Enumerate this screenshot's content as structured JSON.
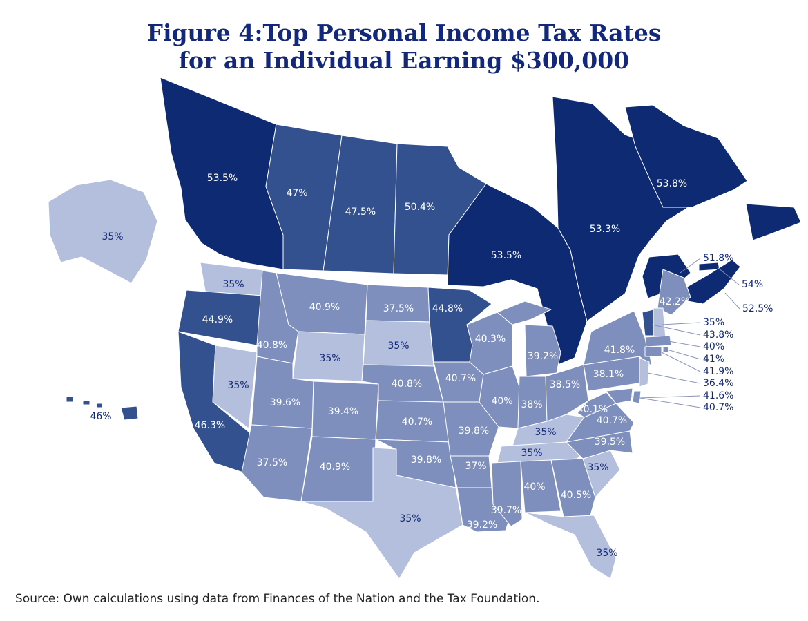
{
  "title": {
    "line1": "Figure 4:Top Personal Income Tax Rates",
    "line2": "for an Individual Earning $300,000"
  },
  "source": "Source: Own calculations using data from Finances of the Nation and the Tax Foundation.",
  "colors": {
    "tier_top": "#0e2a72",
    "tier_high": "#33518f",
    "tier_mid": "#7e8fbd",
    "tier_low": "#b3bfdc",
    "border": "#ffffff",
    "label_dark": "#13287a"
  },
  "regions": [
    {
      "name": "British Columbia",
      "rate": "53.5%",
      "tier": "top"
    },
    {
      "name": "Alberta",
      "rate": "47%",
      "tier": "high"
    },
    {
      "name": "Saskatchewan",
      "rate": "47.5%",
      "tier": "high"
    },
    {
      "name": "Manitoba",
      "rate": "50.4%",
      "tier": "high"
    },
    {
      "name": "Ontario",
      "rate": "53.5%",
      "tier": "top"
    },
    {
      "name": "Quebec",
      "rate": "53.3%",
      "tier": "top"
    },
    {
      "name": "Newfoundland and Labrador",
      "rate": "53.8%",
      "tier": "top"
    },
    {
      "name": "New Brunswick",
      "rate": "51.8%",
      "tier": "top"
    },
    {
      "name": "Prince Edward Island",
      "rate": "54%",
      "tier": "top"
    },
    {
      "name": "Nova Scotia",
      "rate": "52.5%",
      "tier": "top"
    },
    {
      "name": "Alaska",
      "rate": "35%",
      "tier": "low"
    },
    {
      "name": "Hawaii",
      "rate": "46%",
      "tier": "high"
    },
    {
      "name": "Washington",
      "rate": "35%",
      "tier": "low"
    },
    {
      "name": "Oregon",
      "rate": "44.9%",
      "tier": "high"
    },
    {
      "name": "California",
      "rate": "46.3%",
      "tier": "high"
    },
    {
      "name": "Nevada",
      "rate": "35%",
      "tier": "low"
    },
    {
      "name": "Idaho",
      "rate": "40.8%",
      "tier": "mid"
    },
    {
      "name": "Montana",
      "rate": "40.9%",
      "tier": "mid"
    },
    {
      "name": "Wyoming",
      "rate": "35%",
      "tier": "low"
    },
    {
      "name": "Utah",
      "rate": "39.6%",
      "tier": "mid"
    },
    {
      "name": "Arizona",
      "rate": "37.5%",
      "tier": "mid"
    },
    {
      "name": "Colorado",
      "rate": "39.4%",
      "tier": "mid"
    },
    {
      "name": "New Mexico",
      "rate": "40.9%",
      "tier": "mid"
    },
    {
      "name": "North Dakota",
      "rate": "37.5%",
      "tier": "mid"
    },
    {
      "name": "South Dakota",
      "rate": "35%",
      "tier": "low"
    },
    {
      "name": "Nebraska",
      "rate": "40.8%",
      "tier": "mid"
    },
    {
      "name": "Kansas",
      "rate": "40.7%",
      "tier": "mid"
    },
    {
      "name": "Oklahoma",
      "rate": "39.8%",
      "tier": "mid"
    },
    {
      "name": "Texas",
      "rate": "35%",
      "tier": "low"
    },
    {
      "name": "Minnesota",
      "rate": "44.8%",
      "tier": "high"
    },
    {
      "name": "Iowa",
      "rate": "40.7%",
      "tier": "mid"
    },
    {
      "name": "Missouri",
      "rate": "39.8%",
      "tier": "mid"
    },
    {
      "name": "Arkansas",
      "rate": "37%",
      "tier": "mid"
    },
    {
      "name": "Louisiana",
      "rate": "39.2%",
      "tier": "mid"
    },
    {
      "name": "Wisconsin",
      "rate": "40.3%",
      "tier": "mid"
    },
    {
      "name": "Illinois",
      "rate": "40%",
      "tier": "mid"
    },
    {
      "name": "Michigan",
      "rate": "39.2%",
      "tier": "mid"
    },
    {
      "name": "Indiana",
      "rate": "38%",
      "tier": "mid"
    },
    {
      "name": "Ohio",
      "rate": "38.5%",
      "tier": "mid"
    },
    {
      "name": "Kentucky",
      "rate": "35%",
      "tier": "low"
    },
    {
      "name": "Tennessee",
      "rate": "35%",
      "tier": "low"
    },
    {
      "name": "Mississippi",
      "rate": "39.7%",
      "tier": "mid"
    },
    {
      "name": "Alabama",
      "rate": "40%",
      "tier": "mid"
    },
    {
      "name": "Georgia",
      "rate": "40.5%",
      "tier": "mid"
    },
    {
      "name": "Florida",
      "rate": "35%",
      "tier": "low"
    },
    {
      "name": "South Carolina",
      "rate": "35%",
      "tier": "low"
    },
    {
      "name": "North Carolina",
      "rate": "39.5%",
      "tier": "mid"
    },
    {
      "name": "Virginia",
      "rate": "40.7%",
      "tier": "mid"
    },
    {
      "name": "West Virginia",
      "rate": "40.1%",
      "tier": "mid"
    },
    {
      "name": "Pennsylvania",
      "rate": "38.1%",
      "tier": "mid"
    },
    {
      "name": "New York",
      "rate": "41.8%",
      "tier": "mid"
    },
    {
      "name": "Maine",
      "rate": "42.2%",
      "tier": "mid"
    },
    {
      "name": "New Hampshire",
      "rate": "35%",
      "tier": "low"
    },
    {
      "name": "Vermont",
      "rate": "43.8%",
      "tier": "high"
    },
    {
      "name": "Massachusetts",
      "rate": "40%",
      "tier": "mid"
    },
    {
      "name": "Rhode Island",
      "rate": "41%",
      "tier": "mid"
    },
    {
      "name": "Connecticut",
      "rate": "41.9%",
      "tier": "mid"
    },
    {
      "name": "New Jersey",
      "rate": "36.4%",
      "tier": "low"
    },
    {
      "name": "Delaware",
      "rate": "41.6%",
      "tier": "mid"
    },
    {
      "name": "Maryland",
      "rate": "40.7%",
      "tier": "mid"
    }
  ]
}
